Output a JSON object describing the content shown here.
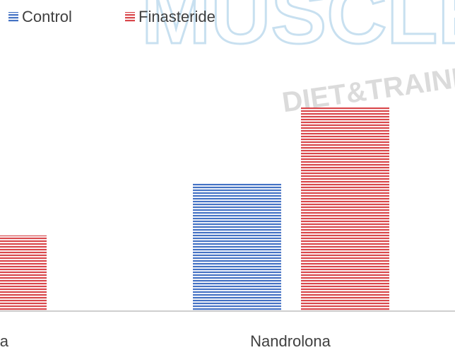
{
  "chart_data": {
    "type": "bar",
    "watermark": {
      "title": "MUSCLE",
      "subtitle": "DIET&TRAINING SY"
    },
    "categories": [
      "a",
      "Nandrolona"
    ],
    "series": [
      {
        "name": "Control",
        "color": "#4472c4",
        "values": [
          null,
          180
        ]
      },
      {
        "name": "Finasteride",
        "color": "#d9474b",
        "values": [
          107,
          288
        ]
      }
    ],
    "ylim": [
      0,
      300
    ]
  }
}
